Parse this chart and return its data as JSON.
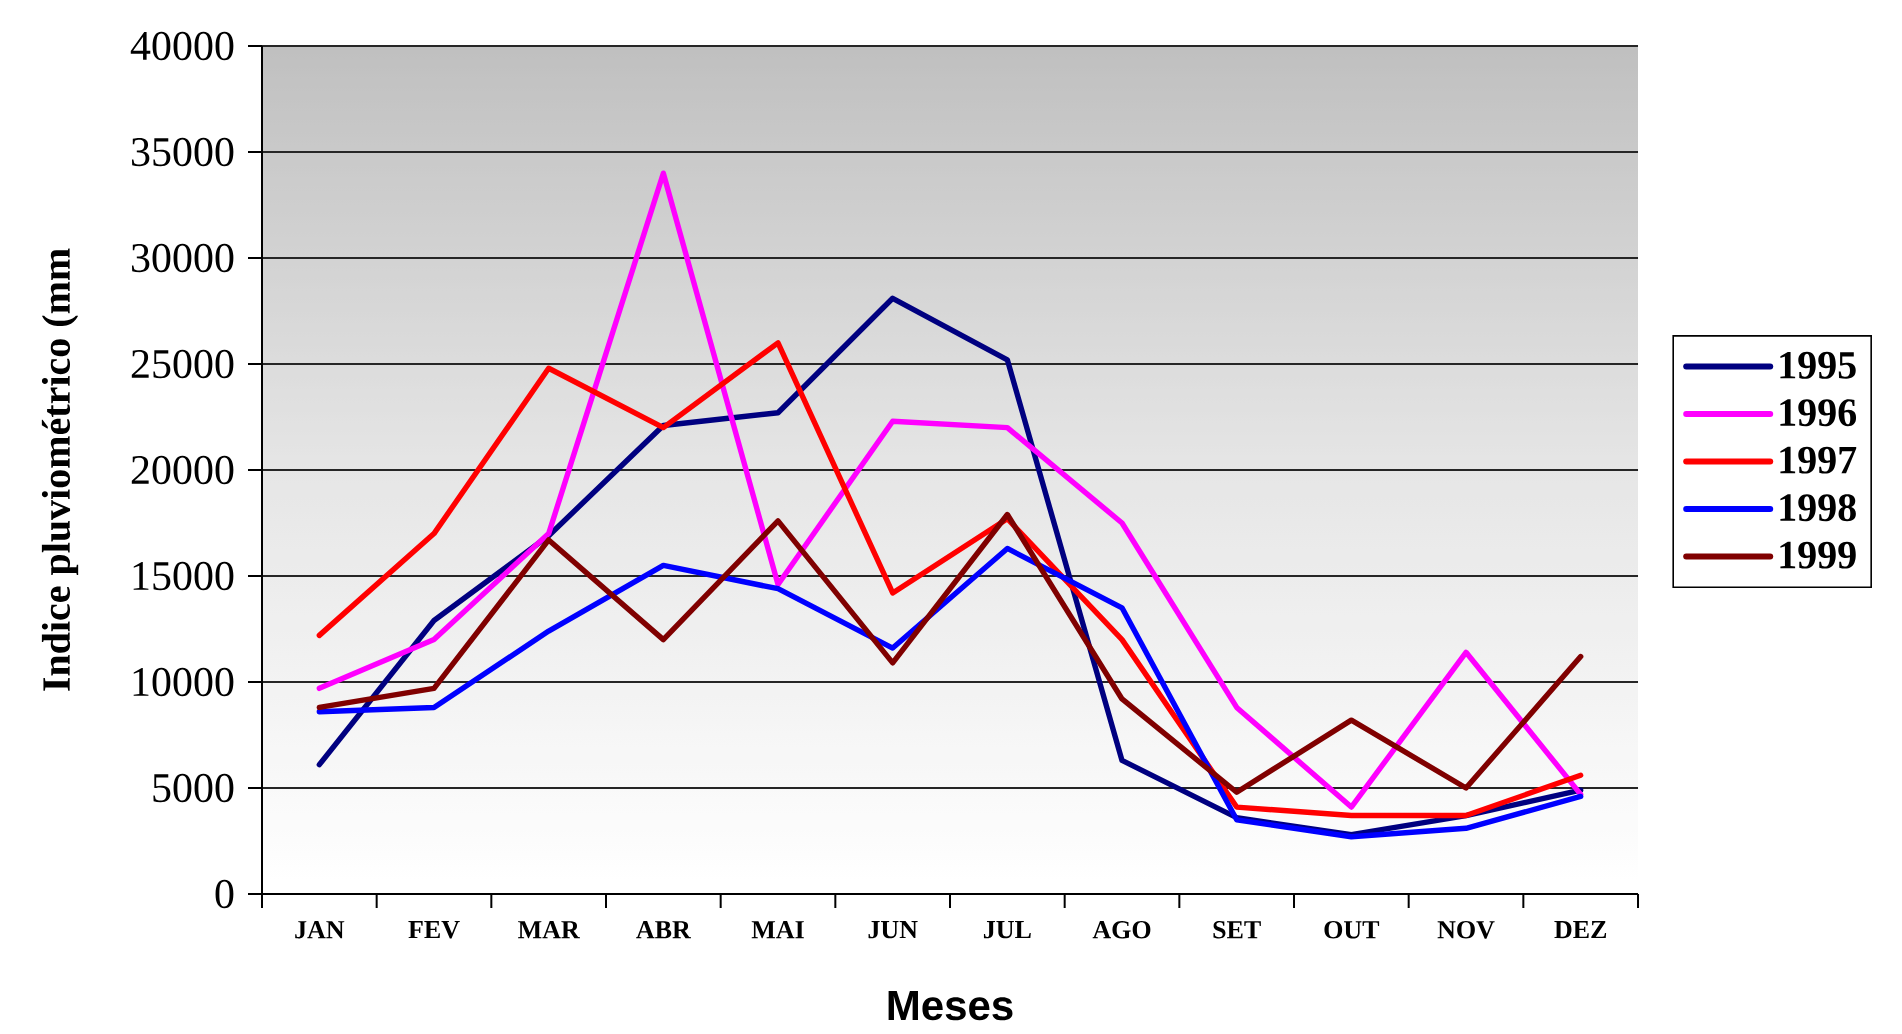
{
  "chart_data": {
    "type": "line",
    "xlabel": "Meses",
    "ylabel": "Indice pluviométrico (mm",
    "categories": [
      "JAN",
      "FEV",
      "MAR",
      "ABR",
      "MAI",
      "JUN",
      "JUL",
      "AGO",
      "SET",
      "OUT",
      "NOV",
      "DEZ"
    ],
    "series": [
      {
        "name": "1995",
        "color": "#000080",
        "values": [
          6100,
          12900,
          16900,
          22100,
          22700,
          28100,
          25200,
          6300,
          3600,
          2800,
          3700,
          4900
        ]
      },
      {
        "name": "1996",
        "color": "#ff00ff",
        "values": [
          9700,
          12000,
          17000,
          34000,
          14600,
          22300,
          22000,
          17500,
          8800,
          4100,
          11400,
          4700
        ]
      },
      {
        "name": "1997",
        "color": "#ff0000",
        "values": [
          12200,
          17000,
          24800,
          22000,
          26000,
          14200,
          17700,
          12000,
          4100,
          3700,
          3700,
          5600
        ]
      },
      {
        "name": "1998",
        "color": "#0000ff",
        "values": [
          8600,
          8800,
          12400,
          15500,
          14400,
          11600,
          16300,
          13500,
          3500,
          2700,
          3100,
          4600
        ]
      },
      {
        "name": "1999",
        "color": "#800000",
        "values": [
          8800,
          9700,
          16700,
          12000,
          17600,
          10900,
          17900,
          9200,
          4800,
          8200,
          5000,
          11200
        ]
      }
    ],
    "ylim": [
      0,
      40000
    ],
    "yticks": [
      0,
      5000,
      10000,
      15000,
      20000,
      25000,
      30000,
      35000,
      40000
    ],
    "grid": "y",
    "legend": "right"
  }
}
